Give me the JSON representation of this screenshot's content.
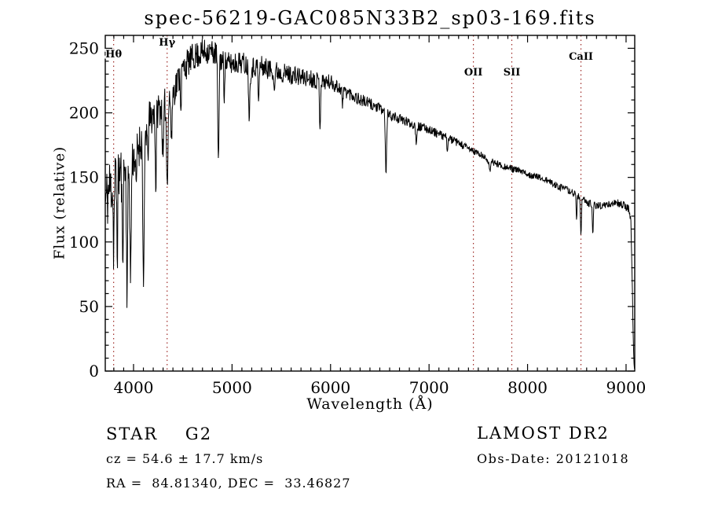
{
  "title": "spec-56219-GAC085N33B2_sp03-169.fits",
  "footer": {
    "class_label": "STAR    G2",
    "cz_label": "cz = 54.6 ± 17.7 km/s",
    "radec_label": "RA =  84.81340, DEC =  33.46827",
    "survey_label": "LAMOST DR2",
    "obsdate_label": "Obs-Date: 20121018"
  },
  "chart_data": {
    "type": "line",
    "title": "spec-56219-GAC085N33B2_sp03-169.fits",
    "xlabel": "Wavelength (Å)",
    "ylabel": "Flux (relative)",
    "xlim": [
      3713,
      9088
    ],
    "ylim": [
      0,
      260
    ],
    "x_major_ticks": [
      4000,
      5000,
      6000,
      7000,
      8000,
      9000
    ],
    "x_minor_step": 100,
    "y_major_ticks": [
      0,
      50,
      100,
      150,
      200,
      250
    ],
    "y_minor_step": 10,
    "grid": false,
    "legend": "none",
    "colors": {
      "line": "#000000",
      "feature_line": "#9e2a26",
      "text": "#000000",
      "background": "#ffffff"
    },
    "features": [
      {
        "label": "Hθ",
        "wavelength": 3798,
        "label_flux": 243
      },
      {
        "label": "Hγ",
        "wavelength": 4341,
        "label_flux": 252
      },
      {
        "label": "OII",
        "wavelength": 7450,
        "label_flux": 229
      },
      {
        "label": "SII",
        "wavelength": 7840,
        "label_flux": 229
      },
      {
        "label": "CaII",
        "wavelength": 8542,
        "label_flux": 241
      }
    ],
    "series": {
      "name": "flux",
      "continuum_anchors": [
        [
          3713,
          135
        ],
        [
          3760,
          148
        ],
        [
          3800,
          152
        ],
        [
          3850,
          158
        ],
        [
          3900,
          162
        ],
        [
          3950,
          160
        ],
        [
          4000,
          170
        ],
        [
          4050,
          178
        ],
        [
          4100,
          185
        ],
        [
          4150,
          196
        ],
        [
          4200,
          202
        ],
        [
          4250,
          206
        ],
        [
          4300,
          210
        ],
        [
          4350,
          212
        ],
        [
          4400,
          218
        ],
        [
          4450,
          228
        ],
        [
          4500,
          236
        ],
        [
          4550,
          241
        ],
        [
          4600,
          245
        ],
        [
          4650,
          247
        ],
        [
          4700,
          249
        ],
        [
          4750,
          250
        ],
        [
          4800,
          249
        ],
        [
          4850,
          247
        ],
        [
          4900,
          242
        ],
        [
          4950,
          240
        ],
        [
          5000,
          240
        ],
        [
          5050,
          241
        ],
        [
          5100,
          241
        ],
        [
          5150,
          239
        ],
        [
          5200,
          237
        ],
        [
          5250,
          238
        ],
        [
          5300,
          238
        ],
        [
          5350,
          236
        ],
        [
          5400,
          235
        ],
        [
          5450,
          234
        ],
        [
          5500,
          233
        ],
        [
          5600,
          231
        ],
        [
          5700,
          229
        ],
        [
          5800,
          228
        ],
        [
          5900,
          226
        ],
        [
          6000,
          225
        ],
        [
          6100,
          220
        ],
        [
          6200,
          216
        ],
        [
          6300,
          211
        ],
        [
          6400,
          208
        ],
        [
          6500,
          204
        ],
        [
          6600,
          199
        ],
        [
          6700,
          196
        ],
        [
          6800,
          193
        ],
        [
          6900,
          190
        ],
        [
          7000,
          188
        ],
        [
          7100,
          184
        ],
        [
          7200,
          181
        ],
        [
          7300,
          177
        ],
        [
          7400,
          173
        ],
        [
          7500,
          169
        ],
        [
          7600,
          164
        ],
        [
          7700,
          161
        ],
        [
          7800,
          158
        ],
        [
          7900,
          156
        ],
        [
          8000,
          153
        ],
        [
          8100,
          151
        ],
        [
          8200,
          148
        ],
        [
          8300,
          144
        ],
        [
          8400,
          141
        ],
        [
          8500,
          137
        ],
        [
          8600,
          131
        ],
        [
          8700,
          129
        ],
        [
          8800,
          129
        ],
        [
          8900,
          131
        ],
        [
          8950,
          130
        ],
        [
          9000,
          128
        ],
        [
          9030,
          126
        ],
        [
          9050,
          115
        ],
        [
          9065,
          60
        ],
        [
          9075,
          15
        ],
        [
          9085,
          3
        ]
      ],
      "absorption_lines": [
        [
          3798,
          50,
          5
        ],
        [
          3835,
          55,
          5
        ],
        [
          3889,
          65,
          6
        ],
        [
          3934,
          90,
          6
        ],
        [
          3970,
          90,
          6
        ],
        [
          4026,
          35,
          5
        ],
        [
          4102,
          122,
          7
        ],
        [
          4144,
          30,
          5
        ],
        [
          4226,
          60,
          5
        ],
        [
          4300,
          45,
          7
        ],
        [
          4341,
          62,
          7
        ],
        [
          4385,
          40,
          5
        ],
        [
          4481,
          25,
          4
        ],
        [
          4861,
          88,
          6
        ],
        [
          4920,
          25,
          4
        ],
        [
          5175,
          36,
          7
        ],
        [
          5270,
          30,
          5
        ],
        [
          5430,
          18,
          4
        ],
        [
          5893,
          36,
          5
        ],
        [
          6122,
          15,
          4
        ],
        [
          6563,
          50,
          6
        ],
        [
          6870,
          12,
          6
        ],
        [
          7186,
          8,
          6
        ],
        [
          7620,
          8,
          8
        ],
        [
          8498,
          20,
          4
        ],
        [
          8542,
          27,
          5
        ],
        [
          8662,
          24,
          5
        ]
      ],
      "noise_profile": [
        [
          3713,
          27
        ],
        [
          3800,
          25
        ],
        [
          3900,
          22
        ],
        [
          4000,
          18
        ],
        [
          4200,
          15
        ],
        [
          4400,
          13
        ],
        [
          4600,
          11
        ],
        [
          4800,
          10
        ],
        [
          5000,
          9
        ],
        [
          5400,
          8
        ],
        [
          5800,
          7
        ],
        [
          6000,
          6
        ],
        [
          6300,
          5
        ],
        [
          6600,
          4
        ],
        [
          7000,
          3.5
        ],
        [
          7400,
          3
        ],
        [
          8000,
          2.5
        ],
        [
          8500,
          2.8
        ],
        [
          9000,
          3
        ],
        [
          9088,
          3
        ]
      ],
      "noise_seed": 11,
      "sample_step_angstrom": 4
    }
  }
}
